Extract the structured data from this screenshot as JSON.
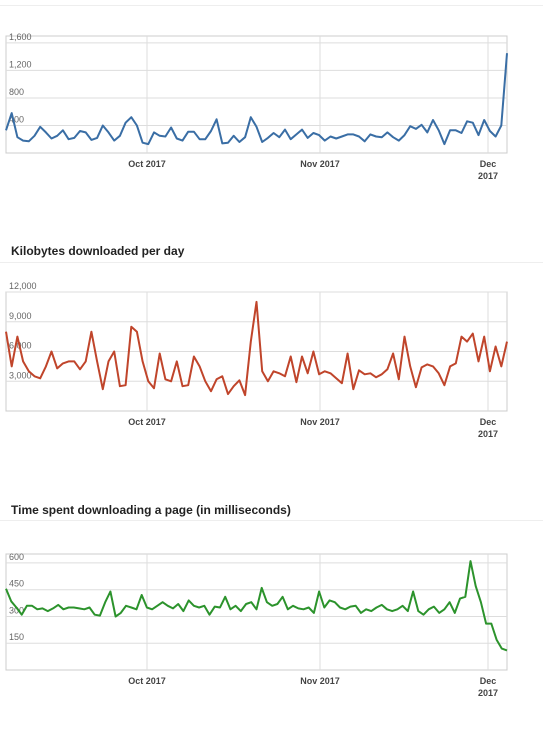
{
  "chart_data": [
    {
      "type": "line",
      "title": "",
      "color": "#3a6ea5",
      "ylim": [
        0,
        1700
      ],
      "ticks": [
        {
          "v": 400,
          "label": "400"
        },
        {
          "v": 800,
          "label": "800"
        },
        {
          "v": 1200,
          "label": "1,200"
        },
        {
          "v": 1600,
          "label": "1,600"
        }
      ],
      "xticks": [
        "Oct 2017",
        "Nov 2017",
        "Dec 2017"
      ],
      "series": [
        {
          "values": [
            330,
            580,
            230,
            180,
            170,
            250,
            380,
            300,
            210,
            250,
            330,
            200,
            220,
            320,
            300,
            190,
            220,
            400,
            300,
            180,
            250,
            440,
            520,
            400,
            150,
            130,
            300,
            250,
            240,
            370,
            210,
            180,
            310,
            310,
            200,
            200,
            320,
            490,
            140,
            150,
            250,
            160,
            230,
            520,
            380,
            160,
            220,
            290,
            230,
            340,
            200,
            270,
            340,
            220,
            290,
            260,
            180,
            240,
            210,
            240,
            270,
            270,
            240,
            170,
            270,
            240,
            230,
            300,
            230,
            180,
            260,
            390,
            350,
            410,
            300,
            480,
            330,
            130,
            330,
            330,
            290,
            460,
            440,
            260,
            480,
            320,
            240,
            400,
            1450
          ]
        }
      ]
    },
    {
      "type": "line",
      "title": "Kilobytes downloaded per day",
      "color": "#c0452b",
      "ylim": [
        0,
        12000
      ],
      "ticks": [
        {
          "v": 3000,
          "label": "3,000"
        },
        {
          "v": 6000,
          "label": "6,000"
        },
        {
          "v": 9000,
          "label": "9,000"
        },
        {
          "v": 12000,
          "label": "12,000"
        }
      ],
      "xticks": [
        "Oct 2017",
        "Nov 2017",
        "Dec 2017"
      ],
      "series": [
        {
          "values": [
            8000,
            4500,
            7500,
            5000,
            4000,
            3500,
            3300,
            4500,
            6000,
            4300,
            4800,
            5000,
            5000,
            4200,
            5000,
            8000,
            5000,
            2200,
            5000,
            6000,
            2500,
            2600,
            8500,
            8000,
            5000,
            3000,
            2300,
            5800,
            3200,
            3000,
            5000,
            2500,
            2600,
            5500,
            4500,
            3000,
            2000,
            3200,
            3500,
            1700,
            2500,
            3100,
            1600,
            7000,
            11000,
            4000,
            3000,
            4000,
            3800,
            3500,
            5500,
            2900,
            5500,
            3800,
            6000,
            3700,
            4000,
            3800,
            3300,
            2800,
            5800,
            2200,
            4100,
            3700,
            3800,
            3400,
            3700,
            4200,
            5800,
            3200,
            7500,
            4500,
            2400,
            4400,
            4700,
            4500,
            3800,
            2600,
            4500,
            4800,
            7500,
            7000,
            7800,
            5000,
            7500,
            4000,
            6500,
            4500,
            7000
          ]
        }
      ]
    },
    {
      "type": "line",
      "title": "Time spent downloading a page (in milliseconds)",
      "color": "#2c932c",
      "ylim": [
        0,
        650
      ],
      "ticks": [
        {
          "v": 150,
          "label": "150"
        },
        {
          "v": 300,
          "label": "300"
        },
        {
          "v": 450,
          "label": "450"
        },
        {
          "v": 600,
          "label": "600"
        }
      ],
      "xticks": [
        "Oct 2017",
        "Nov 2017",
        "Dec 2017"
      ],
      "series": [
        {
          "values": [
            455,
            385,
            350,
            310,
            360,
            360,
            340,
            345,
            330,
            345,
            365,
            340,
            350,
            350,
            345,
            340,
            350,
            310,
            305,
            380,
            440,
            300,
            320,
            360,
            350,
            340,
            420,
            350,
            340,
            360,
            380,
            360,
            345,
            370,
            330,
            390,
            360,
            350,
            360,
            310,
            355,
            350,
            410,
            340,
            360,
            330,
            370,
            380,
            340,
            460,
            380,
            360,
            370,
            410,
            340,
            360,
            345,
            340,
            350,
            320,
            440,
            350,
            390,
            380,
            350,
            340,
            355,
            360,
            320,
            340,
            330,
            350,
            365,
            340,
            330,
            340,
            360,
            330,
            440,
            330,
            310,
            340,
            355,
            320,
            340,
            380,
            320,
            400,
            410,
            610,
            470,
            380,
            260,
            260,
            170,
            120,
            110
          ]
        }
      ]
    }
  ]
}
